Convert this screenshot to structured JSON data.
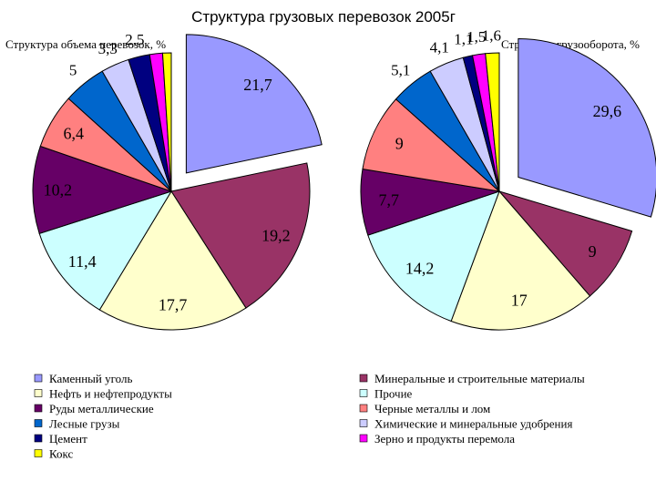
{
  "title": "Структура грузовых перевозок 2005г",
  "charts": [
    {
      "type": "pie",
      "title": "Структура объема перевозок, %",
      "exploded": "Каменный уголь",
      "slices": [
        {
          "name": "Каменный уголь",
          "value": 21.7,
          "label": "21,7"
        },
        {
          "name": "Минеральные и строительные материалы",
          "value": 19.2,
          "label": "19,2"
        },
        {
          "name": "Нефть и нефтепродукты",
          "value": 17.7,
          "label": "17,7"
        },
        {
          "name": "Прочие",
          "value": 11.4,
          "label": "11,4"
        },
        {
          "name": "Руды металлические",
          "value": 10.2,
          "label": "10,2"
        },
        {
          "name": "Черные металлы и лом",
          "value": 6.4,
          "label": "6,4"
        },
        {
          "name": "Лесные грузы",
          "value": 5,
          "label": "5"
        },
        {
          "name": "Химические и минеральные удобрения",
          "value": 3.3,
          "label": "3,3"
        },
        {
          "name": "Цемент",
          "value": 2.5,
          "label": "2,5"
        },
        {
          "name": "Зерно и продукты перемола",
          "value": 1.5,
          "label": ""
        },
        {
          "name": "Кокс",
          "value": 1.0,
          "label": ""
        }
      ]
    },
    {
      "type": "pie",
      "title": "Структура грузооборота, %",
      "exploded": "Каменный уголь",
      "slices": [
        {
          "name": "Каменный уголь",
          "value": 29.6,
          "label": "29,6"
        },
        {
          "name": "Минеральные и строительные материалы",
          "value": 9,
          "label": "9"
        },
        {
          "name": "Нефть и нефтепродукты",
          "value": 17,
          "label": "17"
        },
        {
          "name": "Прочие",
          "value": 14.2,
          "label": "14,2"
        },
        {
          "name": "Руды металлические",
          "value": 7.7,
          "label": "7,7"
        },
        {
          "name": "Черные металлы и лом",
          "value": 9,
          "label": "9"
        },
        {
          "name": "Лесные грузы",
          "value": 5.1,
          "label": "5,1"
        },
        {
          "name": "Химические и минеральные удобрения",
          "value": 4.1,
          "label": "4,1"
        },
        {
          "name": "Цемент",
          "value": 1.1,
          "label": "1,1"
        },
        {
          "name": "Зерно и продукты перемола",
          "value": 1.5,
          "label": "1,5"
        },
        {
          "name": "Кокс",
          "value": 1.6,
          "label": "1,6"
        }
      ]
    }
  ],
  "colors": {
    "Каменный уголь": "#9999ff",
    "Минеральные и строительные материалы": "#993366",
    "Нефть и нефтепродукты": "#ffffcc",
    "Прочие": "#ccffff",
    "Руды металлические": "#660066",
    "Черные металлы и лом": "#ff8080",
    "Лесные грузы": "#0066cc",
    "Химические и минеральные удобрения": "#ccccff",
    "Цемент": "#000080",
    "Зерно и продукты перемола": "#ff00ff",
    "Кокс": "#ffff00"
  },
  "legend_left": [
    "Каменный уголь",
    "Нефть и нефтепродукты",
    "Руды металлические",
    "Лесные грузы",
    "Цемент",
    "Кокс"
  ],
  "legend_right": [
    "Минеральные и строительные материалы",
    "Прочие",
    "Черные металлы и лом",
    "Химические и минеральные удобрения",
    "Зерно и продукты перемола"
  ],
  "chart_data": [
    {
      "type": "pie",
      "title": "Структура объема перевозок, %",
      "categories": [
        "Каменный уголь",
        "Минеральные и строительные материалы",
        "Нефть и нефтепродукты",
        "Прочие",
        "Руды металлические",
        "Черные металлы и лом",
        "Лесные грузы",
        "Химические и минеральные удобрения",
        "Цемент",
        "Зерно и продукты перемола",
        "Кокс"
      ],
      "values": [
        21.7,
        19.2,
        17.7,
        11.4,
        10.2,
        6.4,
        5,
        3.3,
        2.5,
        1.5,
        1.0
      ]
    },
    {
      "type": "pie",
      "title": "Структура грузооборота, %",
      "categories": [
        "Каменный уголь",
        "Минеральные и строительные материалы",
        "Нефть и нефтепродукты",
        "Прочие",
        "Руды металлические",
        "Черные металлы и лом",
        "Лесные грузы",
        "Химические и минеральные удобрения",
        "Цемент",
        "Зерно и продукты перемола",
        "Кокс"
      ],
      "values": [
        29.6,
        9,
        17,
        14.2,
        7.7,
        9,
        5.1,
        4.1,
        1.1,
        1.5,
        1.6
      ]
    }
  ]
}
